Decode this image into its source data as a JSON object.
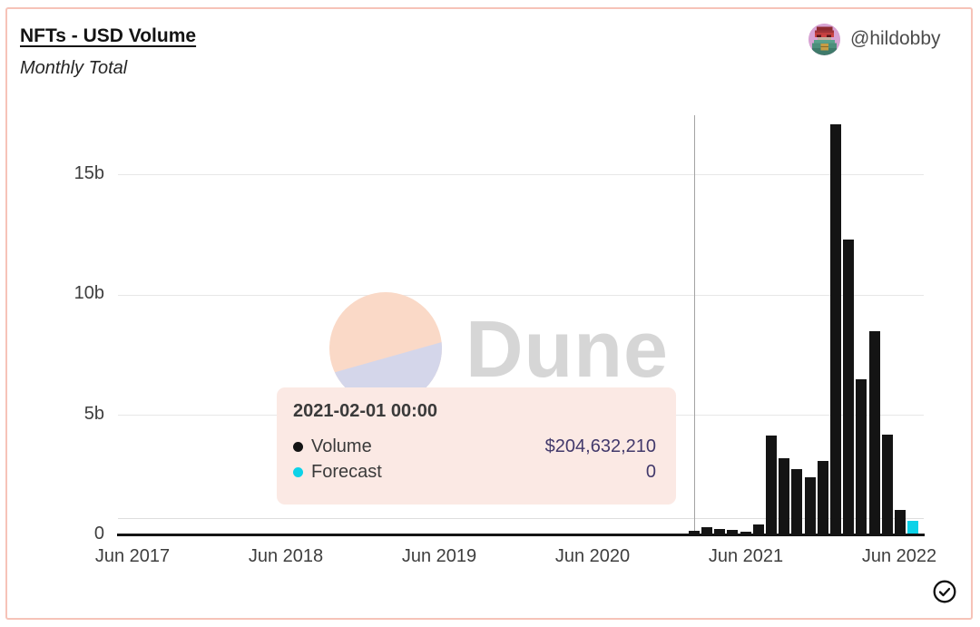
{
  "header": {
    "title": "NFTs - USD Volume",
    "subtitle": "Monthly Total"
  },
  "author": {
    "handle": "@hildobby"
  },
  "watermark": {
    "brand": "Dune"
  },
  "tooltip": {
    "title": "2021-02-01 00:00",
    "rows": [
      {
        "label": "Volume",
        "value": "$204,632,210",
        "marker_color": "#141414"
      },
      {
        "label": "Forecast",
        "value": "0",
        "marker_color": "#0cd2e8"
      }
    ]
  },
  "chart_data": {
    "type": "bar",
    "title": "NFTs - USD Volume",
    "subtitle": "Monthly Total",
    "unit": "USD billions",
    "grid": true,
    "ylim": [
      0,
      17.6
    ],
    "y_ticks": [
      {
        "label": "0",
        "value": 0
      },
      {
        "label": "5b",
        "value": 5
      },
      {
        "label": "10b",
        "value": 10
      },
      {
        "label": "15b",
        "value": 15
      }
    ],
    "x_tick_labels": [
      "Jun 2017",
      "Jun 2018",
      "Jun 2019",
      "Jun 2020",
      "Jun 2021",
      "Jun 2022"
    ],
    "hovered_month": "2021-02",
    "series": [
      {
        "name": "Volume",
        "color": "#141414",
        "points": [
          {
            "month": "2021-01",
            "value_billion": 0.05
          },
          {
            "month": "2021-02",
            "value_billion": 0.205
          },
          {
            "month": "2021-03",
            "value_billion": 0.35
          },
          {
            "month": "2021-04",
            "value_billion": 0.25
          },
          {
            "month": "2021-05",
            "value_billion": 0.22
          },
          {
            "month": "2021-06",
            "value_billion": 0.15
          },
          {
            "month": "2021-07",
            "value_billion": 0.45
          },
          {
            "month": "2021-08",
            "value_billion": 4.15
          },
          {
            "month": "2021-09",
            "value_billion": 3.2
          },
          {
            "month": "2021-10",
            "value_billion": 2.75
          },
          {
            "month": "2021-11",
            "value_billion": 2.4
          },
          {
            "month": "2021-12",
            "value_billion": 3.1
          },
          {
            "month": "2022-01",
            "value_billion": 17.1
          },
          {
            "month": "2022-02",
            "value_billion": 12.3
          },
          {
            "month": "2022-03",
            "value_billion": 6.5
          },
          {
            "month": "2022-04",
            "value_billion": 8.5
          },
          {
            "month": "2022-05",
            "value_billion": 4.2
          },
          {
            "month": "2022-06",
            "value_billion": 1.05
          }
        ]
      },
      {
        "name": "Forecast",
        "color": "#0cd2e8",
        "points": [
          {
            "month": "2022-07",
            "value_billion": 0.6
          }
        ]
      }
    ]
  },
  "icons": {
    "verified": "check-circle-icon",
    "avatar": "pixel-avatar"
  },
  "colors": {
    "card_border": "#f6c3b8",
    "tooltip_bg": "#fbe9e4",
    "bar_black": "#141414",
    "forecast_cyan": "#0cd2e8",
    "value_indigo": "#42396b",
    "gridline": "#e7e7e7",
    "watermark_peach": "#fad9c7",
    "watermark_lavender": "#d4d6ea",
    "watermark_text": "#d6d6d6"
  }
}
